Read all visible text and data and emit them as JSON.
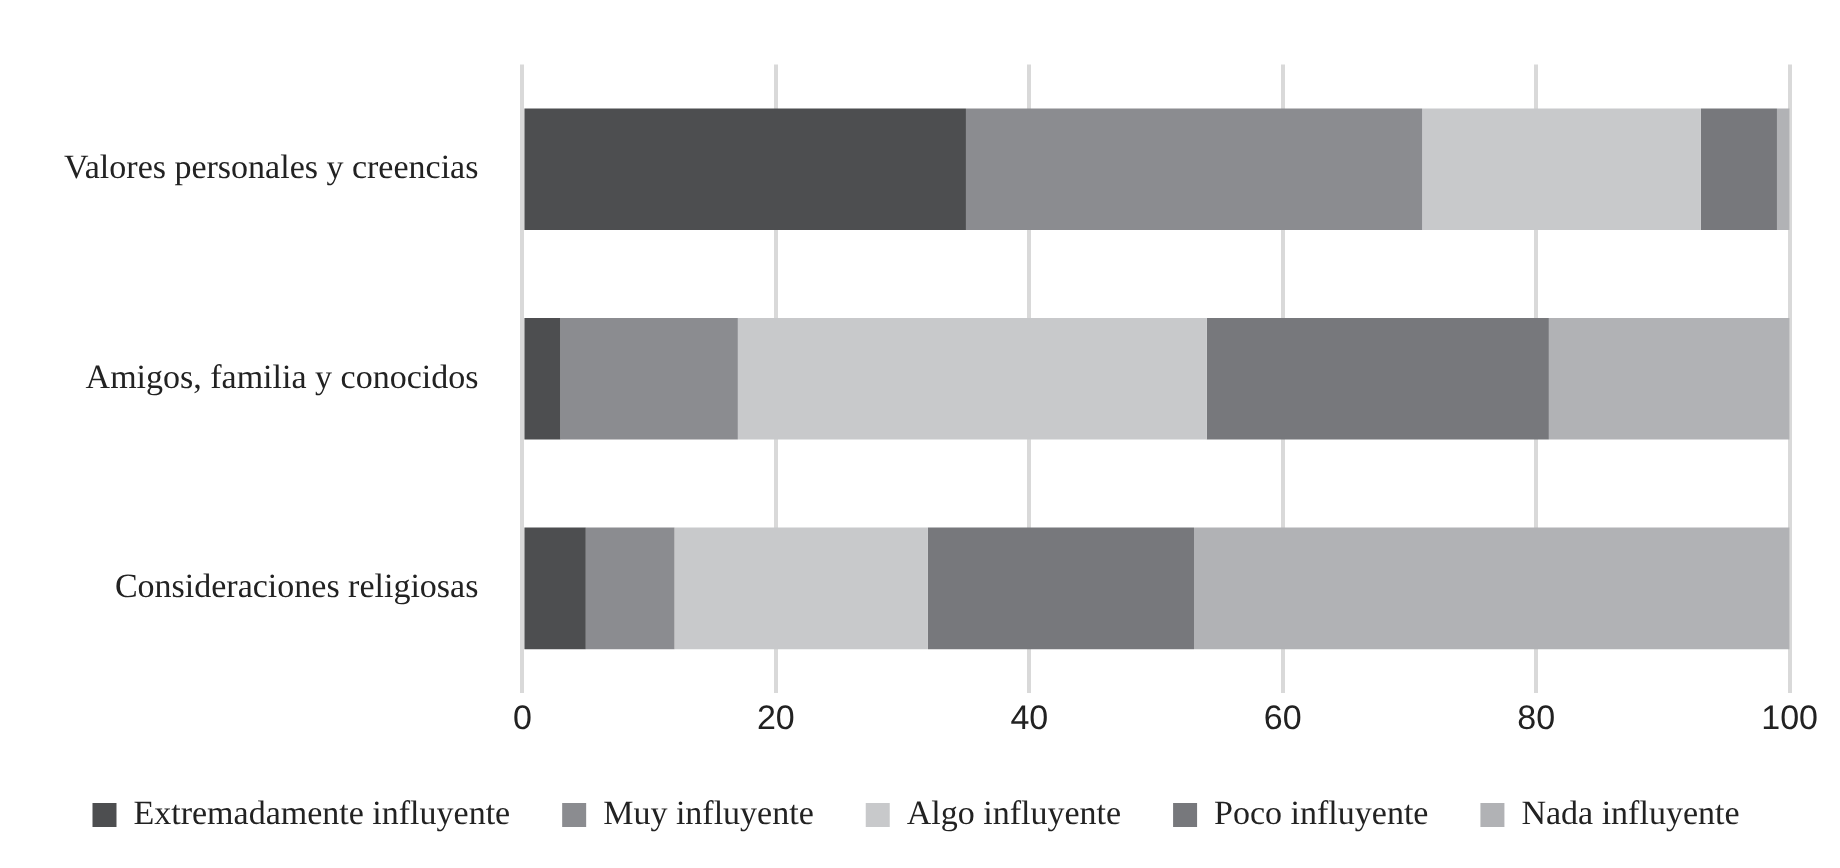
{
  "chart_data": {
    "type": "bar",
    "orientation": "horizontal",
    "stacked": true,
    "categories": [
      "Valores personales y creencias",
      "Amigos, familia y conocidos",
      "Consideraciones religiosas"
    ],
    "series": [
      {
        "name": "Extremadamente influyente",
        "color": "#4d4e50",
        "values": [
          35,
          3,
          5
        ]
      },
      {
        "name": "Muy influyente",
        "color": "#8b8c90",
        "values": [
          36,
          14,
          7
        ]
      },
      {
        "name": "Algo influyente",
        "color": "#c8c9cb",
        "values": [
          22,
          37,
          20
        ]
      },
      {
        "name": "Poco influyente",
        "color": "#77787c",
        "values": [
          6,
          27,
          21
        ]
      },
      {
        "name": "Nada influyente",
        "color": "#b1b2b5",
        "values": [
          1,
          19,
          47
        ]
      }
    ],
    "xlim": [
      0,
      100
    ],
    "xticks": [
      0,
      20,
      40,
      60,
      80,
      100
    ],
    "grid": "x",
    "legend": "bottom"
  }
}
